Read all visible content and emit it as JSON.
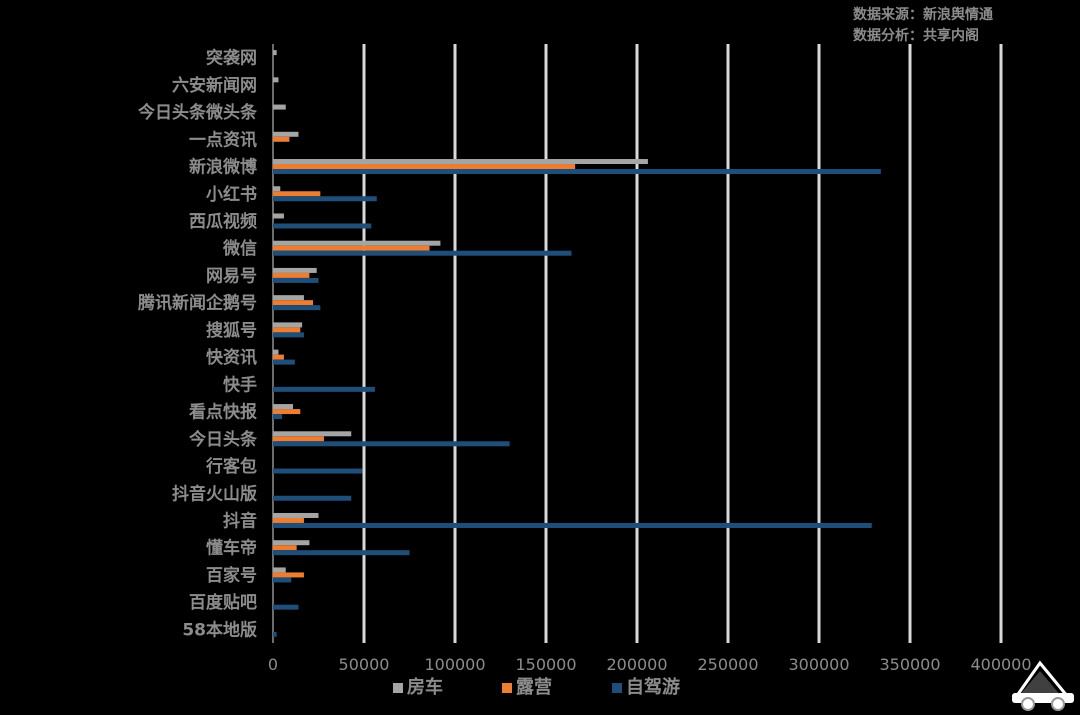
{
  "source": {
    "line1": "数据来源：新浪舆情通",
    "line2": "数据分析：共享内阁"
  },
  "colors": {
    "background": "#000000",
    "grid": "#d9d9d9",
    "text": "#8c8c8c"
  },
  "chart_data": {
    "type": "bar",
    "orientation": "horizontal",
    "categories": [
      "58本地版",
      "百度贴吧",
      "百家号",
      "懂车帝",
      "抖音",
      "抖音火山版",
      "行客包",
      "今日头条",
      "看点快报",
      "快手",
      "快资讯",
      "搜狐号",
      "腾讯新闻企鹅号",
      "网易号",
      "微信",
      "西瓜视频",
      "小红书",
      "新浪微博",
      "一点资讯",
      "今日头条微头条",
      "六安新闻网",
      "突袭网"
    ],
    "series": [
      {
        "name": "房车",
        "color": "#a5a5a5",
        "values": [
          0,
          0,
          7000,
          20000,
          25000,
          0,
          0,
          43000,
          11000,
          0,
          3000,
          16000,
          17000,
          24000,
          92000,
          6000,
          4000,
          206000,
          14000,
          7000,
          3000,
          2000
        ]
      },
      {
        "name": "露营",
        "color": "#ed7d31",
        "values": [
          0,
          0,
          17000,
          13000,
          17000,
          0,
          0,
          28000,
          15000,
          0,
          6000,
          15000,
          22000,
          20000,
          86000,
          0,
          26000,
          166000,
          9000,
          0,
          0,
          0
        ]
      },
      {
        "name": "自驾游",
        "color": "#1f4e79",
        "values": [
          2000,
          14000,
          10000,
          75000,
          329000,
          43000,
          49000,
          130000,
          5000,
          56000,
          12000,
          17000,
          26000,
          25000,
          164000,
          54000,
          57000,
          334000,
          0,
          0,
          0,
          0
        ]
      }
    ],
    "xlim": [
      0,
      400000
    ],
    "xticks": [
      "0",
      "50000",
      "100000",
      "150000",
      "200000",
      "250000",
      "300000",
      "350000",
      "400000"
    ],
    "grid": true,
    "legend_position": "bottom",
    "title": "",
    "xlabel": "",
    "ylabel": ""
  }
}
